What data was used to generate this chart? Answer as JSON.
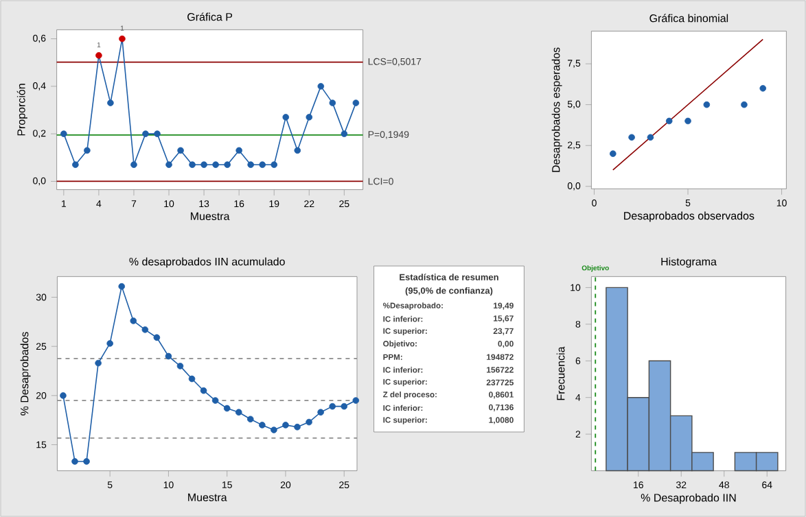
{
  "chart_data": [
    {
      "type": "line",
      "title": "Gráfica P",
      "xlabel": "Muestra",
      "ylabel": "Proporción",
      "marker": "circle",
      "x": [
        1,
        2,
        3,
        4,
        5,
        6,
        7,
        8,
        9,
        10,
        11,
        12,
        13,
        14,
        15,
        16,
        17,
        18,
        19,
        20,
        21,
        22,
        23,
        24,
        25,
        26
      ],
      "series": [
        {
          "color": "#1f5fa8",
          "values": [
            0.2,
            0.07,
            0.13,
            0.53,
            0.33,
            0.6,
            0.07,
            0.2,
            0.2,
            0.07,
            0.13,
            0.07,
            0.07,
            0.07,
            0.07,
            0.13,
            0.07,
            0.07,
            0.07,
            0.27,
            0.13,
            0.27,
            0.4,
            0.33,
            0.2,
            0.33
          ],
          "colors": [
            "#1f5fa8",
            "#1f5fa8",
            "#1f5fa8",
            "#cc0000",
            "#1f5fa8",
            "#cc0000",
            "#1f5fa8",
            "#1f5fa8",
            "#1f5fa8",
            "#1f5fa8",
            "#1f5fa8",
            "#1f5fa8",
            "#1f5fa8",
            "#1f5fa8",
            "#1f5fa8",
            "#1f5fa8",
            "#1f5fa8",
            "#1f5fa8",
            "#1f5fa8",
            "#1f5fa8",
            "#1f5fa8",
            "#1f5fa8",
            "#1f5fa8",
            "#1f5fa8",
            "#1f5fa8",
            "#1f5fa8"
          ]
        }
      ],
      "xlim": [
        0.4,
        26.6
      ],
      "xticks": [
        1,
        4,
        7,
        10,
        13,
        16,
        19,
        22,
        25
      ],
      "ylim": [
        -0.035,
        0.638
      ],
      "yticks": [
        {
          "value": 0,
          "label": "0,0"
        },
        {
          "value": 0.2,
          "label": "0,2"
        },
        {
          "value": 0.4,
          "label": "0,4"
        },
        {
          "value": 0.6,
          "label": "0,6"
        }
      ],
      "ref_lines": [
        {
          "axis": "y",
          "value": 0.5017,
          "label": "LCS=0,5017",
          "color": "#8b0000"
        },
        {
          "axis": "y",
          "value": 0.1949,
          "label": "P=0,1949",
          "color": "#1a8a1a"
        },
        {
          "axis": "y",
          "value": 0,
          "label": "LCI=0",
          "color": "#8b0000"
        }
      ],
      "annotations": [
        {
          "text": "1",
          "x": 4,
          "y": 0.53
        },
        {
          "text": "1",
          "x": 6,
          "y": 0.6
        }
      ]
    },
    {
      "type": "scatter",
      "title": "Gráfica binomial",
      "xlabel": "Desaprobados observados",
      "ylabel": "Desaprobados esperados",
      "marker": "circle",
      "series": [
        {
          "type": "scatter",
          "color": "#1f5fa8",
          "x": [
            1,
            2,
            3,
            4,
            5,
            6,
            8,
            9
          ],
          "values": [
            2,
            3,
            3,
            4,
            4,
            5,
            5,
            6
          ]
        },
        {
          "type": "line",
          "color": "#8b0000",
          "marker": "none",
          "x": [
            1,
            9
          ],
          "values": [
            1,
            9
          ]
        }
      ],
      "xlim": [
        -0.15,
        10.25
      ],
      "xticks": [
        0,
        5,
        10
      ],
      "ylim": [
        -0.15,
        9.5
      ],
      "yticks": [
        {
          "value": 0,
          "label": "0,0"
        },
        {
          "value": 2.5,
          "label": "2,5"
        },
        {
          "value": 5,
          "label": "5,0"
        },
        {
          "value": 7.5,
          "label": "7,5"
        }
      ]
    },
    {
      "type": "line",
      "title": "% desaprobados IIN acumulado",
      "xlabel": "Muestra",
      "ylabel": "% Desaprobados",
      "marker": "circle",
      "x": [
        1,
        2,
        3,
        4,
        5,
        6,
        7,
        8,
        9,
        10,
        11,
        12,
        13,
        14,
        15,
        16,
        17,
        18,
        19,
        20,
        21,
        22,
        23,
        24,
        25,
        26
      ],
      "series": [
        {
          "color": "#1f5fa8",
          "values": [
            20,
            13.3,
            13.3,
            23.3,
            25.3,
            31.1,
            27.6,
            26.7,
            25.9,
            24,
            23,
            21.7,
            20.5,
            19.5,
            18.7,
            18.3,
            17.6,
            17,
            16.5,
            17,
            16.8,
            17.3,
            18.3,
            18.9,
            18.9,
            19.5
          ]
        }
      ],
      "xlim": [
        0.5,
        26.1
      ],
      "xticks": [
        5,
        10,
        15,
        20,
        25
      ],
      "ylim": [
        12.35,
        32.1
      ],
      "yticks": [
        15,
        20,
        25,
        30
      ],
      "ref_lines": [
        {
          "axis": "y",
          "value": 15.67,
          "color": "#8c8c8c",
          "line_style": "dashed"
        },
        {
          "axis": "y",
          "value": 19.49,
          "color": "#8c8c8c",
          "line_style": "dashed"
        },
        {
          "axis": "y",
          "value": 23.77,
          "color": "#8c8c8c",
          "line_style": "dashed"
        }
      ]
    },
    {
      "type": "other",
      "title": "Estadística de resumen",
      "subtitle": "(95,0% de confianza)",
      "annotations": [
        "%Desaprobado:",
        "19,49",
        "IC inferior:",
        "15,67",
        "IC superior:",
        "23,77",
        "Objetivo:",
        "0,00",
        "PPM:",
        "194872",
        "IC inferior:",
        "156722",
        "IC superior:",
        "237725",
        "Z del proceso:",
        "0,8601",
        "IC inferior:",
        "0,7136",
        "IC superior:",
        "1,0080"
      ]
    },
    {
      "type": "histogram",
      "title": "Histograma",
      "xlabel": "% Desaprobado IIN",
      "ylabel": "Frecuencia",
      "color": "#7da7d9",
      "bins": [
        4,
        12,
        20,
        28,
        36,
        44,
        52,
        60,
        68
      ],
      "values": [
        10,
        4,
        6,
        3,
        1,
        0,
        1,
        1
      ],
      "xlim": [
        -1.5,
        71
      ],
      "xticks": [
        16,
        32,
        48,
        64
      ],
      "ylim": [
        0,
        10.6
      ],
      "yticks": [
        2,
        4,
        6,
        8,
        10
      ],
      "ref_lines": [
        {
          "axis": "x",
          "value": 0,
          "label": "Objetivo",
          "color": "#1a8a1a",
          "line_style": "dashed"
        }
      ]
    }
  ]
}
